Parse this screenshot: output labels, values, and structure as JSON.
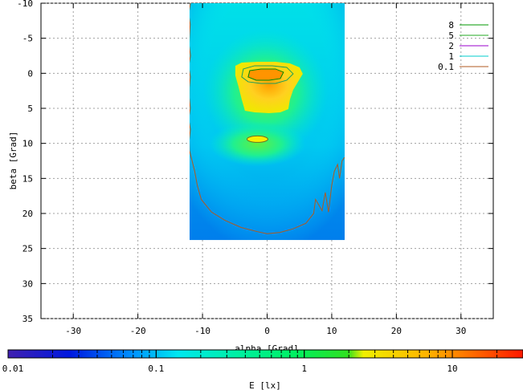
{
  "chart_data": {
    "type": "heatmap",
    "title": "",
    "xlabel": "alpha [Grad]",
    "ylabel": "beta [Grad]",
    "xlim": [
      -35,
      35
    ],
    "ylim": [
      35,
      -10
    ],
    "x_ticks": [
      -30,
      -20,
      -10,
      0,
      10,
      20,
      30
    ],
    "y_ticks": [
      -10,
      -5,
      0,
      5,
      10,
      15,
      20,
      25,
      30,
      35
    ],
    "x_tick_labels": [
      "-30",
      "-20",
      "-10",
      "0",
      "10",
      "20",
      "30"
    ],
    "y_tick_labels": [
      "-10",
      "-5",
      "0",
      "5",
      "10",
      "15",
      "20",
      "25",
      "30",
      "35"
    ],
    "grid": true,
    "data_extent": {
      "x": [
        -12,
        12
      ],
      "y": [
        -10,
        23.8
      ]
    },
    "hotspots": [
      {
        "name": "main-peak",
        "x": -0.2,
        "y": 0.3,
        "value": 10
      },
      {
        "name": "secondary-peak",
        "x": -1.5,
        "y": 9.4,
        "value": 4
      }
    ],
    "legend": {
      "placement": "top-right",
      "entries": [
        {
          "label": "8",
          "color": "#009900"
        },
        {
          "label": "5",
          "color": "#22aa22"
        },
        {
          "label": "2",
          "color": "#9900cc"
        },
        {
          "label": "1",
          "color": "#00cccc"
        },
        {
          "label": "0.1",
          "color": "#b05a20"
        }
      ]
    },
    "contour_levels": [
      8,
      5,
      2,
      1,
      0.1
    ],
    "colorbar": {
      "label": "E [lx]",
      "scale": "log",
      "range": [
        0.01,
        30
      ],
      "ticks": [
        0.01,
        0.1,
        1,
        10
      ],
      "tick_labels": [
        "0.01",
        "0.1",
        "1",
        "10"
      ]
    }
  }
}
